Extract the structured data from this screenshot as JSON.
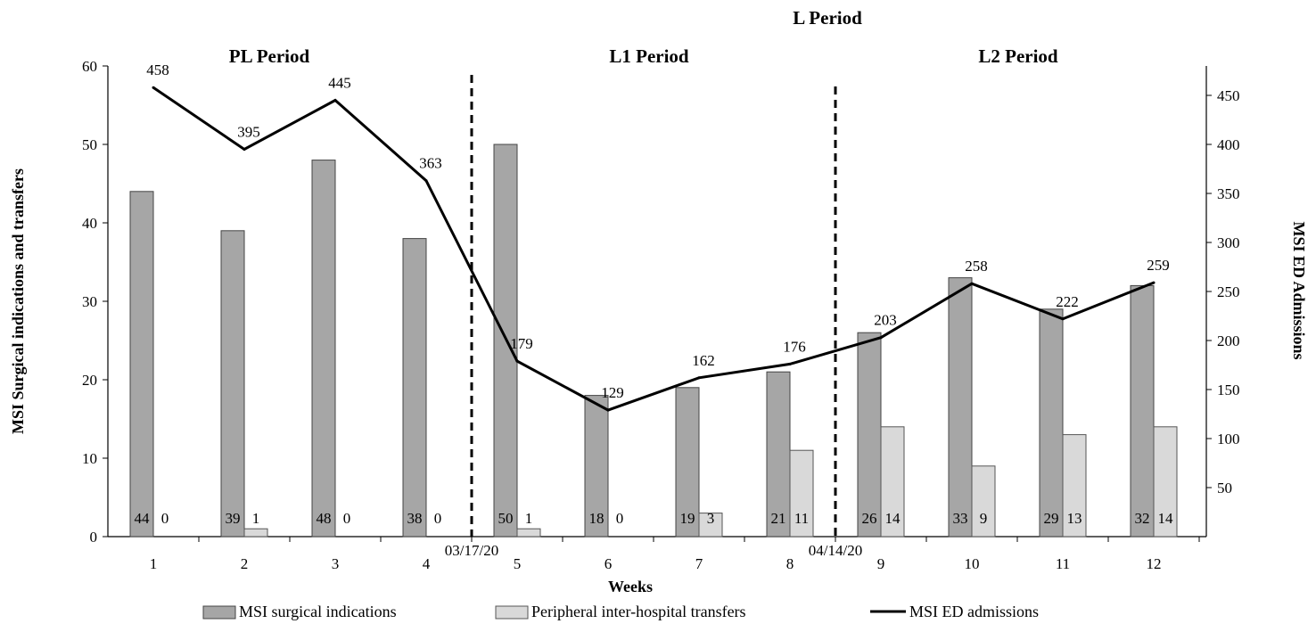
{
  "chart_data": {
    "type": "bar",
    "xlabel": "Weeks",
    "ylabel_left": "MSI  Surgical indications and transfers",
    "ylabel_right": "MSI ED Admissions",
    "ylim_left": [
      0,
      60
    ],
    "yticks_left": [
      0,
      10,
      20,
      30,
      40,
      50,
      60
    ],
    "ylim_right": [
      0,
      480
    ],
    "yticks_right": [
      50,
      100,
      150,
      200,
      250,
      300,
      350,
      400,
      450
    ],
    "categories": [
      "1",
      "2",
      "3",
      "4",
      "5",
      "6",
      "7",
      "8",
      "9",
      "10",
      "11",
      "12"
    ],
    "series": [
      {
        "name": "MSI surgical indications",
        "type": "bar",
        "axis": "left",
        "color": "#a6a6a6",
        "values": [
          44,
          39,
          48,
          38,
          50,
          18,
          19,
          21,
          26,
          33,
          29,
          32
        ]
      },
      {
        "name": "Peripheral inter-hospital transfers",
        "type": "bar",
        "axis": "left",
        "color": "#d9d9d9",
        "values": [
          0,
          1,
          0,
          0,
          1,
          0,
          3,
          11,
          14,
          9,
          13,
          14
        ]
      },
      {
        "name": "MSI ED admissions",
        "type": "line",
        "axis": "right",
        "color": "#000000",
        "values": [
          458,
          395,
          445,
          363,
          179,
          129,
          162,
          176,
          203,
          258,
          222,
          259
        ]
      }
    ],
    "periods": {
      "top": "L Period",
      "labels": [
        "PL Period",
        "L1 Period",
        "L2 Period"
      ]
    },
    "dividers": [
      {
        "after_week": 4,
        "label": "03/17/20"
      },
      {
        "after_week": 8,
        "label": "04/14/20"
      }
    ],
    "legend": "bottom",
    "grid": false
  }
}
